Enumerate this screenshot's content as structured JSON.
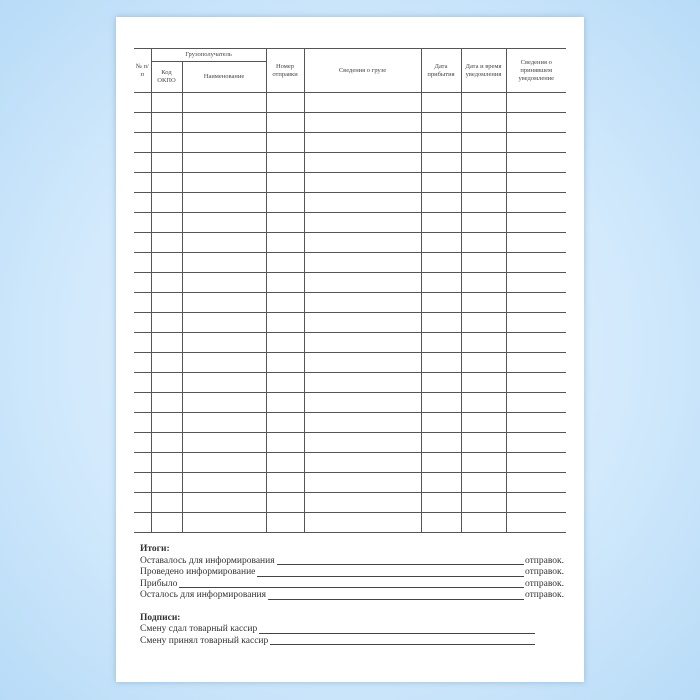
{
  "table": {
    "headers": {
      "num": "№ п/п",
      "consignee": "Грузополучатель",
      "okpo": "Код ОКПО",
      "name": "Наименование",
      "shipment_no": "Номер отправки",
      "cargo_info": "Сведения о грузе",
      "arrival_date": "Дата прибытия",
      "notice_datetime": "Дата и время уведомления",
      "receiver_info": "Сведения о принявшем уведомление"
    }
  },
  "totals": {
    "title": "Итоги:",
    "lines": [
      {
        "label": "Оставалось для информирования",
        "suffix": "отправок."
      },
      {
        "label": "Проведено информирование",
        "suffix": "отправок."
      },
      {
        "label": "Прибыло",
        "suffix": "отправок."
      },
      {
        "label": "Осталось для информирования",
        "suffix": "отправок."
      }
    ]
  },
  "signatures": {
    "title": "Подписи:",
    "lines": [
      {
        "label": "Смену сдал товарный кассир"
      },
      {
        "label": "Смену принял товарный кассир"
      }
    ]
  }
}
